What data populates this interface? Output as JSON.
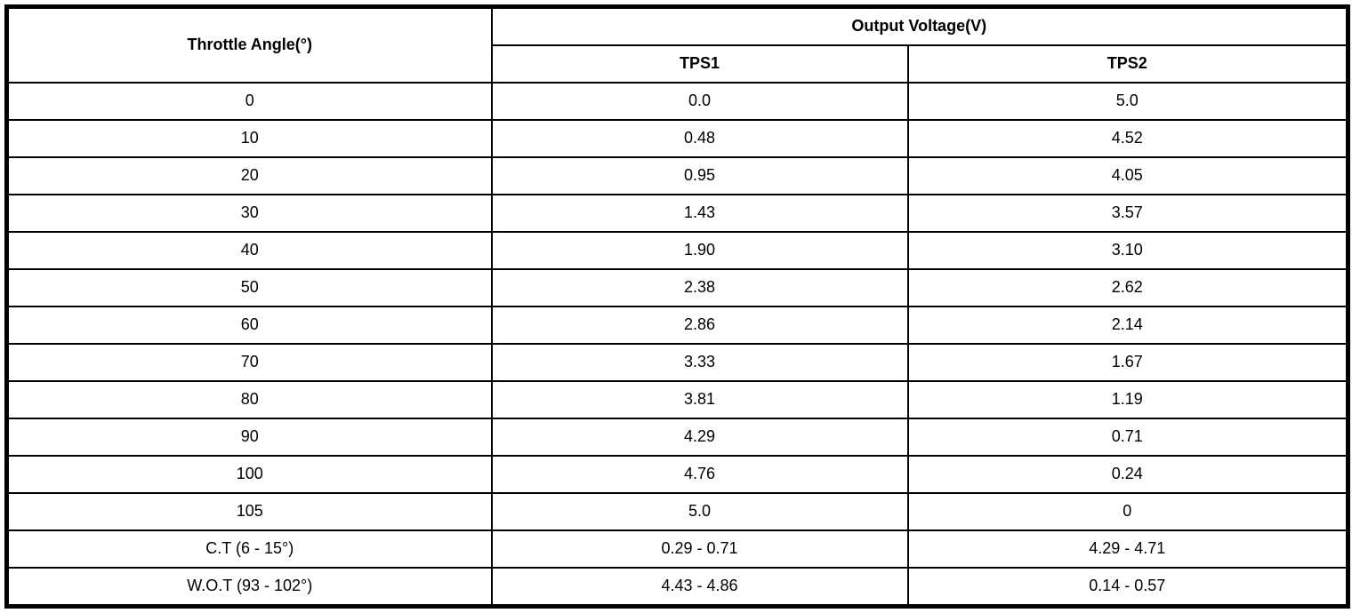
{
  "table": {
    "headers": {
      "throttle_angle": "Throttle Angle(°)",
      "output_voltage": "Output Voltage(V)",
      "tps1": "TPS1",
      "tps2": "TPS2"
    },
    "rows": [
      {
        "angle": "0",
        "tps1": "0.0",
        "tps2": "5.0"
      },
      {
        "angle": "10",
        "tps1": "0.48",
        "tps2": "4.52"
      },
      {
        "angle": "20",
        "tps1": "0.95",
        "tps2": "4.05"
      },
      {
        "angle": "30",
        "tps1": "1.43",
        "tps2": "3.57"
      },
      {
        "angle": "40",
        "tps1": "1.90",
        "tps2": "3.10"
      },
      {
        "angle": "50",
        "tps1": "2.38",
        "tps2": "2.62"
      },
      {
        "angle": "60",
        "tps1": "2.86",
        "tps2": "2.14"
      },
      {
        "angle": "70",
        "tps1": "3.33",
        "tps2": "1.67"
      },
      {
        "angle": "80",
        "tps1": "3.81",
        "tps2": "1.19"
      },
      {
        "angle": "90",
        "tps1": "4.29",
        "tps2": "0.71"
      },
      {
        "angle": "100",
        "tps1": "4.76",
        "tps2": "0.24"
      },
      {
        "angle": "105",
        "tps1": "5.0",
        "tps2": "0"
      },
      {
        "angle": "C.T (6 - 15°)",
        "tps1": "0.29 - 0.71",
        "tps2": "4.29 - 4.71"
      },
      {
        "angle": "W.O.T (93 - 102°)",
        "tps1": "4.43 - 4.86",
        "tps2": "0.14 - 0.57"
      }
    ]
  },
  "colors": {
    "border": "#000000",
    "background": "#ffffff",
    "text": "#000000"
  },
  "chart_data": {
    "type": "table",
    "title": "",
    "columns": [
      "Throttle Angle(°)",
      "Output Voltage(V) TPS1",
      "Output Voltage(V) TPS2"
    ],
    "rows": [
      [
        "0",
        "0.0",
        "5.0"
      ],
      [
        "10",
        "0.48",
        "4.52"
      ],
      [
        "20",
        "0.95",
        "4.05"
      ],
      [
        "30",
        "1.43",
        "3.57"
      ],
      [
        "40",
        "1.90",
        "3.10"
      ],
      [
        "50",
        "2.38",
        "2.62"
      ],
      [
        "60",
        "2.86",
        "2.14"
      ],
      [
        "70",
        "3.33",
        "1.67"
      ],
      [
        "80",
        "3.81",
        "1.19"
      ],
      [
        "90",
        "4.29",
        "0.71"
      ],
      [
        "100",
        "4.76",
        "0.24"
      ],
      [
        "105",
        "5.0",
        "0"
      ],
      [
        "C.T (6 - 15°)",
        "0.29 - 0.71",
        "4.29 - 4.71"
      ],
      [
        "W.O.T (93 - 102°)",
        "4.43 - 4.86",
        "0.14 - 0.57"
      ]
    ]
  }
}
